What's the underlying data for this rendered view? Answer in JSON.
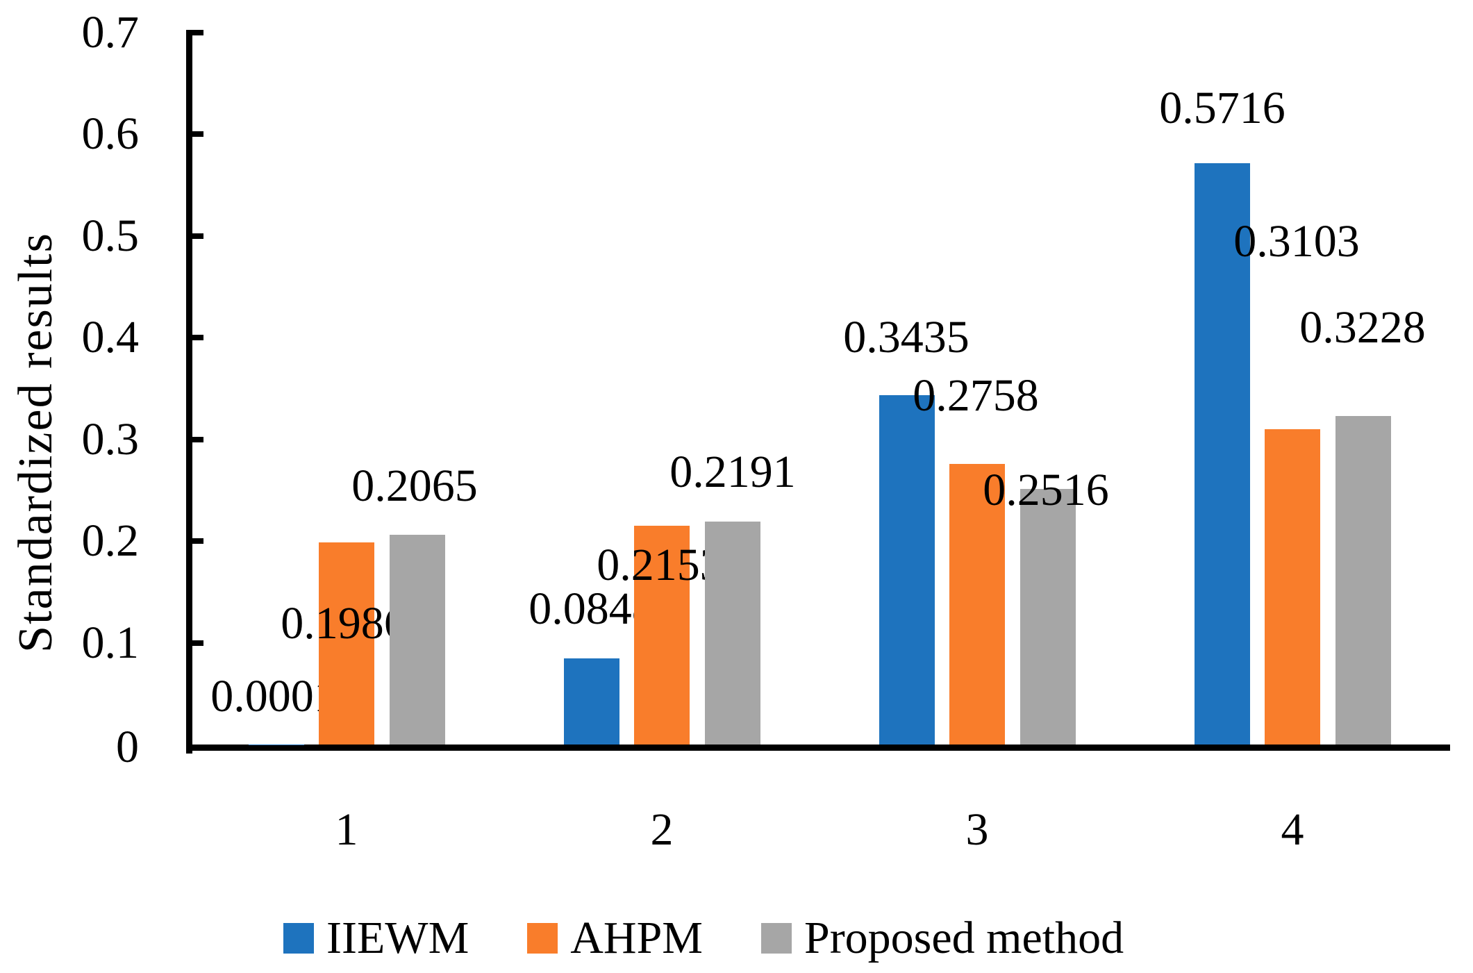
{
  "page": {
    "background": "#ffffff",
    "text_color": "#000000",
    "axis_color": "#000000"
  },
  "chart_data": {
    "type": "bar",
    "title": "",
    "xlabel": "",
    "ylabel": "Standardized results",
    "categories": [
      "1",
      "2",
      "3",
      "4"
    ],
    "series": [
      {
        "name": "IIEWM",
        "color": "#1E73BE",
        "values": [
          0.0001,
          0.0848,
          0.3435,
          0.5716
        ],
        "labels": [
          "0.0001",
          "0.0848",
          "0.3435",
          "0.5716"
        ]
      },
      {
        "name": "AHPM",
        "color": "#F97D2B",
        "values": [
          0.1986,
          0.2153,
          0.2758,
          0.3103
        ],
        "labels": [
          "0.1986",
          "0.2153",
          "0.2758",
          "0.3103"
        ]
      },
      {
        "name": "Proposed method",
        "color": "#A6A6A6",
        "values": [
          0.2065,
          0.2191,
          0.2516,
          0.3228
        ],
        "labels": [
          "0.2065",
          "0.2191",
          "0.2516",
          "0.3228"
        ]
      }
    ],
    "ylim": [
      0,
      0.7
    ],
    "ytick_labels": [
      "0",
      "0.1",
      "0.2",
      "0.3",
      "0.4",
      "0.5",
      "0.6",
      "0.7"
    ],
    "grid": false,
    "legend_position": "bottom"
  }
}
